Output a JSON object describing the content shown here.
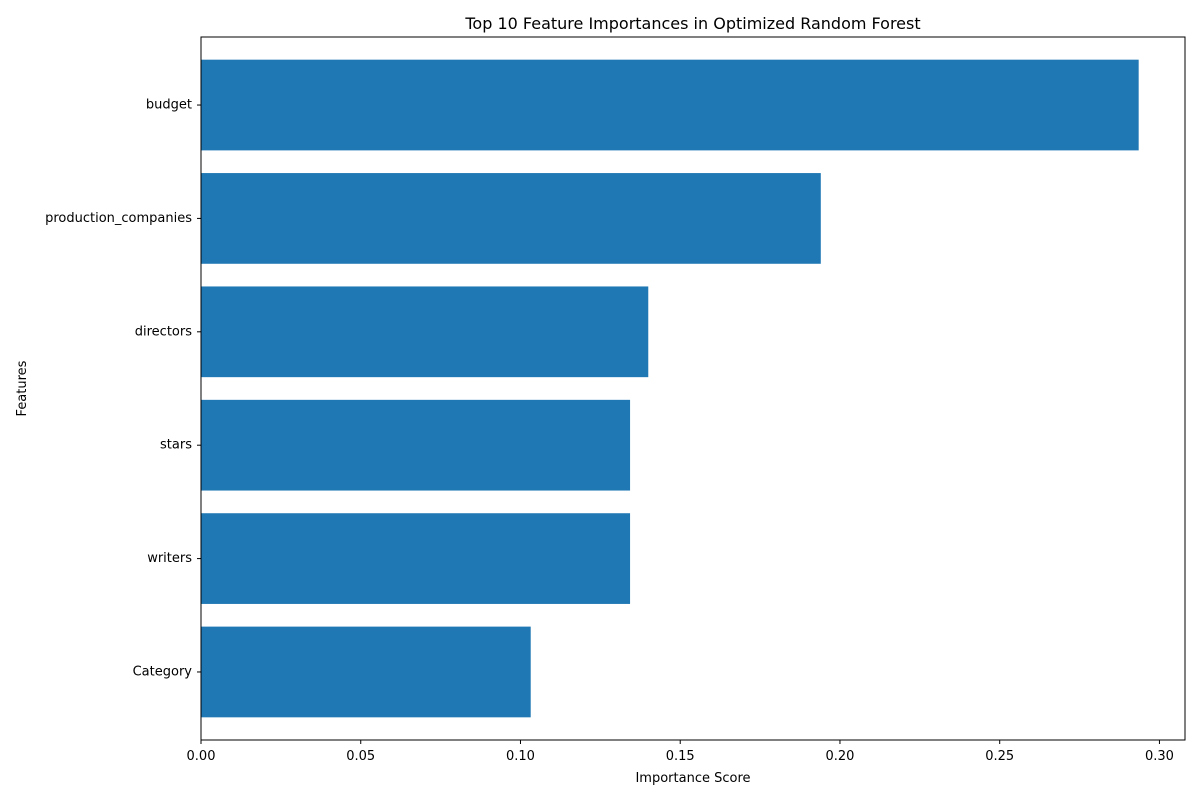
{
  "chart_data": {
    "type": "bar",
    "orientation": "horizontal",
    "title": "Top 10 Feature Importances in Optimized Random Forest",
    "xlabel": "Importance Score",
    "ylabel": "Features",
    "categories": [
      "budget",
      "production_companies",
      "directors",
      "stars",
      "writers",
      "Category"
    ],
    "values": [
      0.2935,
      0.194,
      0.14,
      0.1343,
      0.1343,
      0.1032
    ],
    "xlim": [
      0,
      0.308
    ],
    "xticks": [
      0.0,
      0.05,
      0.1,
      0.15,
      0.2,
      0.25,
      0.3
    ],
    "xtick_labels": [
      "0.00",
      "0.05",
      "0.10",
      "0.15",
      "0.20",
      "0.25",
      "0.30"
    ],
    "grid": false,
    "legend": "none",
    "bar_color": "#1f77b4"
  }
}
